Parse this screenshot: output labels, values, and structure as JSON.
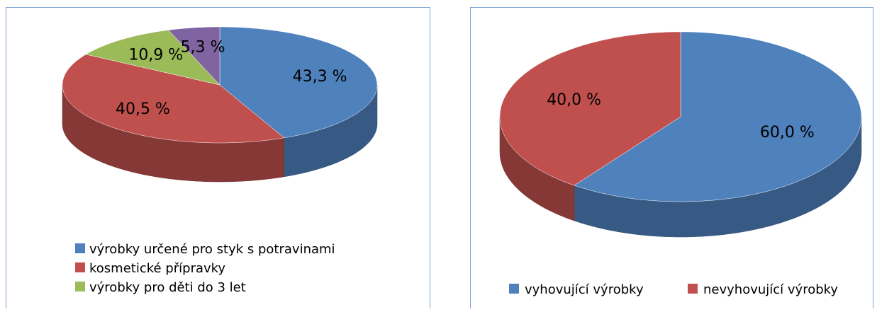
{
  "chart_data": [
    {
      "type": "pie3d",
      "categories": [
        "výrobky určené pro styk s potravinami",
        "kosmetické přípravky",
        "výrobky pro děti do 3 let",
        null
      ],
      "values": [
        43.3,
        40.5,
        10.9,
        5.3
      ],
      "value_labels": [
        "43,3 %",
        "40,5 %",
        "10,9 %",
        "5,3 %"
      ],
      "colors": [
        "#4f81bd",
        "#c0504d",
        "#9bbb59",
        "#8064a2"
      ],
      "legend": "bottom"
    },
    {
      "type": "pie3d",
      "categories": [
        "vyhovující výrobky",
        "nevyhovující výrobky"
      ],
      "values": [
        60.0,
        40.0
      ],
      "value_labels": [
        "60,0 %",
        "40,0 %"
      ],
      "colors": [
        "#4f81bd",
        "#c0504d"
      ],
      "legend": "bottom"
    }
  ]
}
